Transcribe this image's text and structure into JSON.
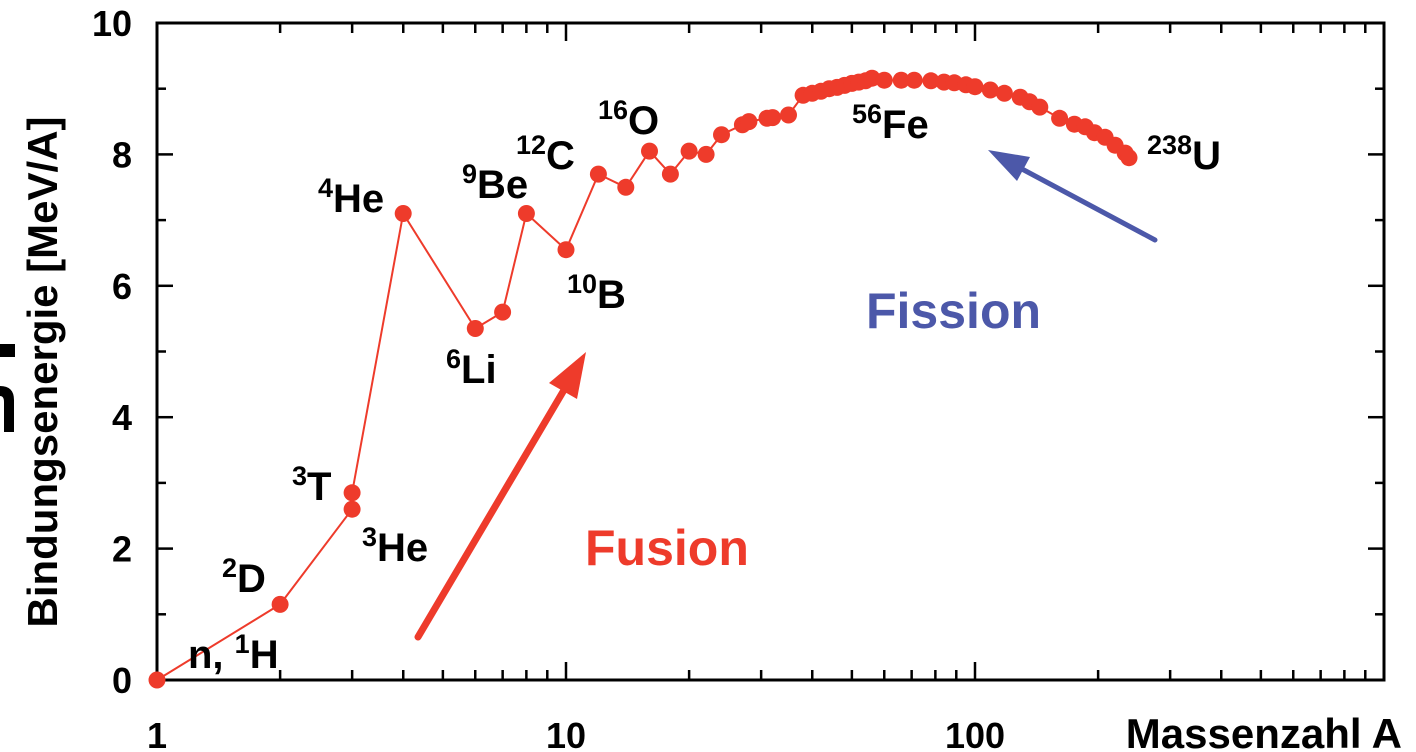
{
  "chart_data": {
    "type": "line",
    "title": "",
    "xlabel": "Massenzahl A",
    "ylabel": "Bindungsenergie [MeV/A]",
    "xscale": "log",
    "xlim": [
      1,
      1000
    ],
    "ylim": [
      0,
      10
    ],
    "grid": false,
    "legend": "none",
    "xticks": [
      {
        "value": 1,
        "label": "1"
      },
      {
        "value": 10,
        "label": "10"
      },
      {
        "value": 100,
        "label": "100"
      }
    ],
    "yticks": [
      {
        "value": 0,
        "label": "0"
      },
      {
        "value": 2,
        "label": "2"
      },
      {
        "value": 4,
        "label": "4"
      },
      {
        "value": 6,
        "label": "6"
      },
      {
        "value": 8,
        "label": "8"
      },
      {
        "value": 10,
        "label": "10"
      }
    ],
    "series": [
      {
        "color": "#ee3b2b",
        "marker": "circle",
        "x": [
          1,
          2,
          3,
          3,
          4,
          6,
          7,
          8,
          10,
          12,
          14,
          16,
          18,
          20,
          22,
          24,
          27,
          28,
          31,
          32,
          35,
          38,
          40,
          42,
          44,
          46,
          48,
          50,
          52,
          54,
          56,
          60,
          66,
          71,
          78,
          84,
          89,
          95,
          100,
          109,
          118,
          129,
          136,
          144,
          161,
          175,
          186,
          196,
          208,
          220,
          233,
          238
        ],
        "y": [
          0,
          1.15,
          2.6,
          2.85,
          7.1,
          5.35,
          5.6,
          7.1,
          6.55,
          7.7,
          7.5,
          8.05,
          7.7,
          8.05,
          8.0,
          8.3,
          8.45,
          8.5,
          8.55,
          8.56,
          8.6,
          8.9,
          8.93,
          8.96,
          9.0,
          9.02,
          9.05,
          9.08,
          9.1,
          9.12,
          9.16,
          9.13,
          9.13,
          9.13,
          9.12,
          9.1,
          9.09,
          9.06,
          9.03,
          8.98,
          8.93,
          8.87,
          8.8,
          8.72,
          8.55,
          8.46,
          8.42,
          8.33,
          8.26,
          8.14,
          8.02,
          7.95
        ]
      }
    ],
    "annotations": {
      "h1": {
        "pre": "n, ",
        "sup": "1",
        "text": "H"
      },
      "d2": {
        "sup": "2",
        "text": "D"
      },
      "t3": {
        "sup": "3",
        "text": "T"
      },
      "he3": {
        "sup": "3",
        "text": "He"
      },
      "he4": {
        "sup": "4",
        "text": "He"
      },
      "li6": {
        "sup": "6",
        "text": "Li"
      },
      "be9": {
        "sup": "9",
        "text": "Be"
      },
      "c12": {
        "sup": "12",
        "text": "C"
      },
      "o16": {
        "sup": "16",
        "text": "O"
      },
      "b10": {
        "sup": "10",
        "text": "B"
      },
      "fe56": {
        "sup": "56",
        "text": "Fe"
      },
      "u238": {
        "sup": "238",
        "text": "U"
      }
    },
    "arrows": {
      "fusion": {
        "label": "Fusion",
        "color": "#ee3b2b"
      },
      "fission": {
        "label": "Fission",
        "color": "#4c58a9"
      }
    }
  }
}
